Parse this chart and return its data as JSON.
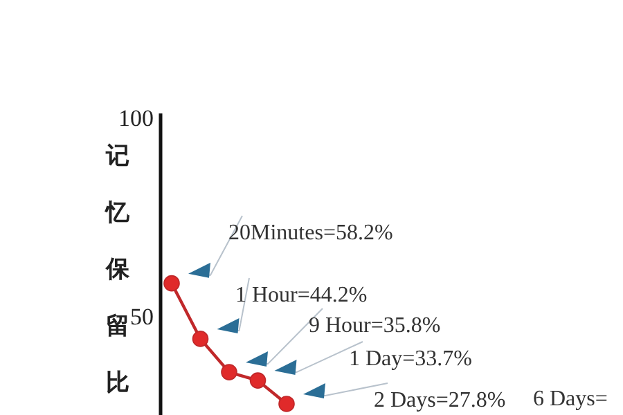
{
  "chart_data": {
    "type": "line",
    "categories": [
      null,
      null,
      null,
      null,
      null
    ],
    "values": [
      58.2,
      44.2,
      35.8,
      33.7,
      27.8
    ],
    "color": "#c0282a",
    "marker": "circle",
    "ylim": [
      25,
      100
    ],
    "yticks": [
      50,
      100
    ],
    "tick_labels": "y",
    "ylabel": "记忆保留比",
    "annotations": [
      "20Minutes=58.2%",
      "1 Hour=44.2%",
      "9 Hour=35.8%",
      "1 Day=33.7%",
      "2 Days=27.8%",
      "6 Days="
    ]
  }
}
